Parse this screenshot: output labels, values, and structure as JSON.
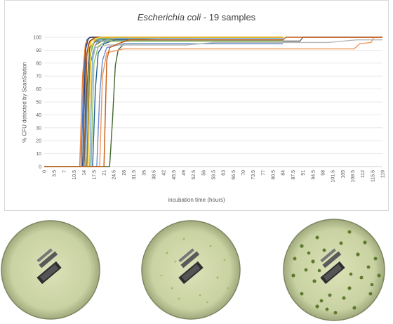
{
  "chart_data": {
    "type": "line",
    "title_species": "Escherichia coli",
    "title_suffix": " - 19 samples",
    "xlabel": "incubation time (hours)",
    "ylabel": "% CFU detected by ScanStation",
    "xlim": [
      0,
      119
    ],
    "ylim": [
      0,
      100
    ],
    "y_ticks": [
      0,
      10,
      20,
      30,
      40,
      50,
      60,
      70,
      80,
      90,
      100
    ],
    "x_ticks": [
      "0",
      "3.5",
      "7",
      "10.5",
      "14",
      "17.5",
      "21",
      "24.5",
      "28",
      "31.5",
      "35",
      "38.5",
      "42",
      "45.5",
      "49",
      "52.5",
      "56",
      "59.5",
      "63",
      "66.5",
      "70",
      "73.5",
      "77",
      "80.5",
      "84",
      "87.5",
      "91",
      "94.5",
      "98",
      "101.5",
      "105",
      "108.5",
      "112",
      "115.5",
      "119"
    ],
    "grid": true,
    "legend": "none",
    "series": [
      {
        "color": "#4472c4",
        "points": [
          [
            0,
            0
          ],
          [
            13,
            0
          ],
          [
            14,
            80
          ],
          [
            15,
            98
          ],
          [
            16,
            100
          ],
          [
            84,
            100
          ]
        ]
      },
      {
        "color": "#ed7d31",
        "points": [
          [
            0,
            0
          ],
          [
            12.5,
            0
          ],
          [
            13.5,
            70
          ],
          [
            14.5,
            95
          ],
          [
            16,
            100
          ],
          [
            84,
            100
          ]
        ]
      },
      {
        "color": "#a5a5a5",
        "points": [
          [
            0,
            0
          ],
          [
            13.5,
            0
          ],
          [
            14.5,
            75
          ],
          [
            15.5,
            95
          ],
          [
            17,
            98
          ],
          [
            84,
            98
          ]
        ]
      },
      {
        "color": "#ffc000",
        "points": [
          [
            0,
            0
          ],
          [
            14,
            0
          ],
          [
            15,
            85
          ],
          [
            16.5,
            97
          ],
          [
            18,
            100
          ],
          [
            84,
            100
          ]
        ]
      },
      {
        "color": "#5b9bd5",
        "points": [
          [
            0,
            0
          ],
          [
            14.5,
            0
          ],
          [
            15.5,
            80
          ],
          [
            17,
            95
          ],
          [
            19,
            98
          ],
          [
            30,
            100
          ],
          [
            84,
            100
          ]
        ]
      },
      {
        "color": "#70ad47",
        "points": [
          [
            0,
            0
          ],
          [
            15,
            0
          ],
          [
            16,
            85
          ],
          [
            17.5,
            96
          ],
          [
            19,
            99
          ],
          [
            84,
            99
          ]
        ]
      },
      {
        "color": "#264478",
        "points": [
          [
            0,
            0
          ],
          [
            13.5,
            0
          ],
          [
            14.5,
            90
          ],
          [
            15.5,
            99
          ],
          [
            16.5,
            100
          ],
          [
            84,
            100
          ]
        ]
      },
      {
        "color": "#9e480e",
        "points": [
          [
            0,
            0
          ],
          [
            14,
            0
          ],
          [
            15,
            88
          ],
          [
            16,
            97
          ],
          [
            18,
            100
          ],
          [
            84,
            100
          ]
        ]
      },
      {
        "color": "#636363",
        "points": [
          [
            0,
            0
          ],
          [
            14,
            0
          ],
          [
            15,
            60
          ],
          [
            16,
            92
          ],
          [
            18,
            97
          ],
          [
            90,
            97
          ],
          [
            91,
            100
          ],
          [
            119,
            100
          ]
        ]
      },
      {
        "color": "#997300",
        "points": [
          [
            0,
            0
          ],
          [
            15,
            0
          ],
          [
            16,
            78
          ],
          [
            18,
            94
          ],
          [
            21,
            98
          ],
          [
            40,
            99
          ],
          [
            60,
            100
          ],
          [
            84,
            100
          ]
        ]
      },
      {
        "color": "#255e91",
        "points": [
          [
            0,
            0
          ],
          [
            17,
            0
          ],
          [
            18,
            60
          ],
          [
            19,
            88
          ],
          [
            21,
            95
          ],
          [
            25,
            98
          ],
          [
            84,
            98
          ]
        ]
      },
      {
        "color": "#43682b",
        "points": [
          [
            0,
            0
          ],
          [
            23,
            0
          ],
          [
            24,
            35
          ],
          [
            25,
            78
          ],
          [
            26,
            90
          ],
          [
            28,
            95
          ],
          [
            84,
            95
          ]
        ]
      },
      {
        "color": "#698ed0",
        "points": [
          [
            0,
            0
          ],
          [
            18.5,
            0
          ],
          [
            19.5,
            55
          ],
          [
            20.5,
            82
          ],
          [
            22,
            92
          ],
          [
            28,
            95
          ],
          [
            84,
            95
          ]
        ]
      },
      {
        "color": "#f1975a",
        "points": [
          [
            0,
            0
          ],
          [
            19.5,
            0
          ],
          [
            20.5,
            70
          ],
          [
            22,
            88
          ],
          [
            26,
            90
          ],
          [
            28,
            91
          ],
          [
            109,
            91
          ],
          [
            111,
            95
          ],
          [
            115,
            96
          ],
          [
            116,
            100
          ],
          [
            119,
            100
          ]
        ]
      },
      {
        "color": "#b7b7b7",
        "points": [
          [
            0,
            0
          ],
          [
            16,
            0
          ],
          [
            17,
            82
          ],
          [
            18,
            92
          ],
          [
            22,
            94
          ],
          [
            50,
            94
          ],
          [
            60,
            96
          ],
          [
            100,
            96
          ],
          [
            110,
            98
          ],
          [
            119,
            98
          ]
        ]
      },
      {
        "color": "#ffcd33",
        "points": [
          [
            0,
            0
          ],
          [
            15.5,
            0
          ],
          [
            16.5,
            92
          ],
          [
            18,
            99
          ],
          [
            20,
            100
          ],
          [
            84,
            100
          ]
        ]
      },
      {
        "color": "#7cafdd",
        "points": [
          [
            0,
            0
          ],
          [
            16,
            0
          ],
          [
            17,
            88
          ],
          [
            18.5,
            96
          ],
          [
            24,
            99
          ],
          [
            84,
            99
          ]
        ]
      },
      {
        "color": "#8cc168",
        "points": [
          [
            0,
            0
          ],
          [
            16.5,
            0
          ],
          [
            17.5,
            80
          ],
          [
            19,
            93
          ],
          [
            22,
            97
          ],
          [
            84,
            97
          ]
        ]
      },
      {
        "color": "#c55a11",
        "points": [
          [
            0,
            0
          ],
          [
            21,
            0
          ],
          [
            22,
            82
          ],
          [
            23,
            92
          ],
          [
            26,
            95
          ],
          [
            30,
            98
          ],
          [
            84,
            98
          ],
          [
            85,
            100
          ],
          [
            119,
            100
          ]
        ]
      }
    ]
  }
}
